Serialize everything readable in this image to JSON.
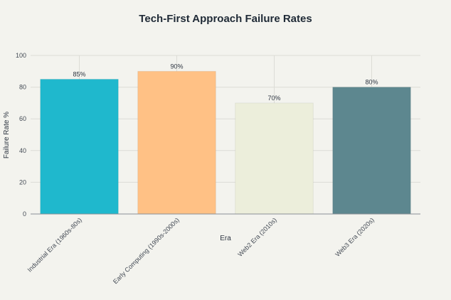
{
  "chart_data": {
    "type": "bar",
    "title": "Tech-First Approach Failure Rates",
    "xlabel": "Era",
    "ylabel": "Failure Rate %",
    "categories": [
      "Industrial Era (1960s-80s)",
      "Early Computing (1990s-2000s)",
      "Web2 Era (2010s)",
      "Web3 Era (2020s)"
    ],
    "values": [
      85,
      90,
      70,
      80
    ],
    "data_labels": [
      "85%",
      "90%",
      "70%",
      "80%"
    ],
    "colors": [
      "#1fb8cd",
      "#ffc185",
      "#eceedb",
      "#5d878f"
    ],
    "ylim": [
      0,
      100
    ],
    "yticks": [
      0,
      20,
      40,
      60,
      80,
      100
    ],
    "ytick_labels": [
      "0",
      "20",
      "40",
      "60",
      "80",
      "100"
    ],
    "grid": true,
    "legend": "none"
  }
}
